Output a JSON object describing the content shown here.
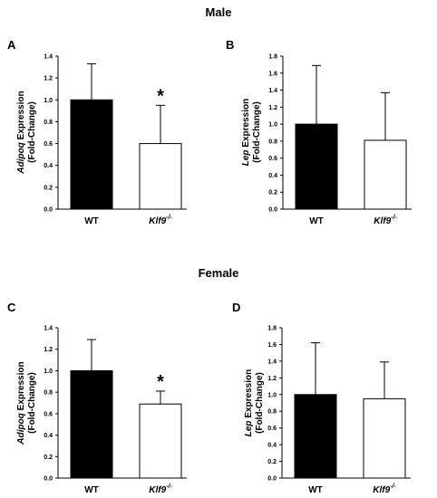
{
  "sections": {
    "male": "Male",
    "female": "Female"
  },
  "chart_data": [
    {
      "panel": "A",
      "type": "bar",
      "categories": [
        "WT",
        "Klf9"
      ],
      "category_superscripts": [
        "",
        "-/-"
      ],
      "values": [
        1.0,
        0.6
      ],
      "errors": [
        0.33,
        0.35
      ],
      "fill_colors": [
        "#000000",
        "#ffffff"
      ],
      "ylabel_italic": "Adipoq",
      "ylabel_rest": " Expression",
      "ylabel_line2": "(Fold-Change)",
      "ylim": [
        0,
        1.4
      ],
      "yticks": [
        "0.0",
        "0.2",
        "0.4",
        "0.6",
        "0.8",
        "1.0",
        "1.2",
        "1.4"
      ],
      "significance": [
        "",
        "*"
      ],
      "grid": false
    },
    {
      "panel": "B",
      "type": "bar",
      "categories": [
        "WT",
        "Klf9"
      ],
      "category_superscripts": [
        "",
        "-/-"
      ],
      "values": [
        1.0,
        0.81
      ],
      "errors": [
        0.69,
        0.56
      ],
      "fill_colors": [
        "#000000",
        "#ffffff"
      ],
      "ylabel_italic": "Lep",
      "ylabel_rest": " Expression",
      "ylabel_line2": "(Fold-Change)",
      "ylim": [
        0,
        1.8
      ],
      "yticks": [
        "0.0",
        "0.2",
        "0.4",
        "0.6",
        "0.8",
        "1.0",
        "1.2",
        "1.4",
        "1.6",
        "1.8"
      ],
      "significance": [
        "",
        ""
      ],
      "grid": false
    },
    {
      "panel": "C",
      "type": "bar",
      "categories": [
        "WT",
        "Klf9"
      ],
      "category_superscripts": [
        "",
        "-/-"
      ],
      "values": [
        1.0,
        0.69
      ],
      "errors": [
        0.29,
        0.12
      ],
      "fill_colors": [
        "#000000",
        "#ffffff"
      ],
      "ylabel_italic": "Adipoq",
      "ylabel_rest": " Expression",
      "ylabel_line2": "(Fold-Change)",
      "ylim": [
        0,
        1.4
      ],
      "yticks": [
        "0.0",
        "0.2",
        "0.4",
        "0.6",
        "0.8",
        "1.0",
        "1.2",
        "1.4"
      ],
      "significance": [
        "",
        "*"
      ],
      "grid": false
    },
    {
      "panel": "D",
      "type": "bar",
      "categories": [
        "WT",
        "Klf9"
      ],
      "category_superscripts": [
        "",
        "-/-"
      ],
      "values": [
        1.0,
        0.95
      ],
      "errors": [
        0.62,
        0.44
      ],
      "fill_colors": [
        "#000000",
        "#ffffff"
      ],
      "ylabel_italic": "Lep",
      "ylabel_rest": " Expression",
      "ylabel_line2": "(Fold-Change)",
      "ylim": [
        0,
        1.8
      ],
      "yticks": [
        "0.0",
        "0.2",
        "0.4",
        "0.6",
        "0.8",
        "1.0",
        "1.2",
        "1.4",
        "1.6",
        "1.8"
      ],
      "significance": [
        "",
        ""
      ],
      "grid": false
    }
  ]
}
